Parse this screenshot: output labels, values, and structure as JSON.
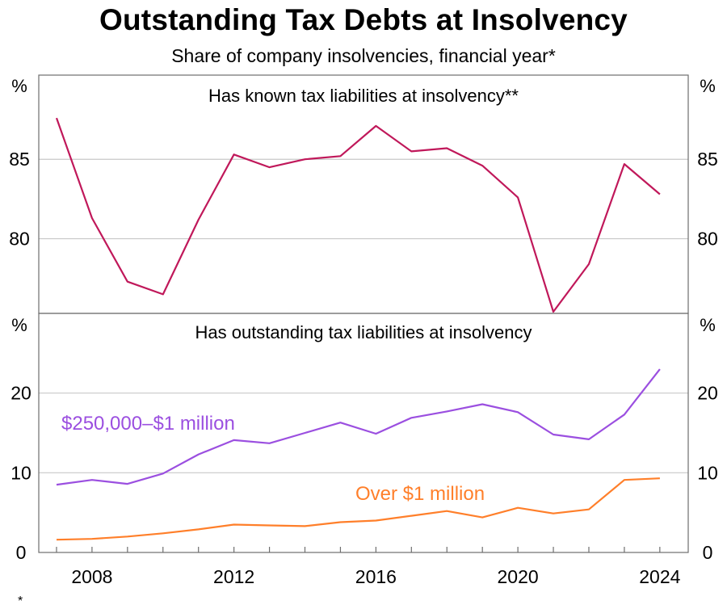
{
  "title": "Outstanding Tax Debts at Insolvency",
  "subtitle": "Share of company insolvencies, financial year*",
  "footnote_mark": "*",
  "colors": {
    "known": "#C0185A",
    "mid": "#9B4FE0",
    "over": "#FF7F2A",
    "grid": "#C8C8C8",
    "frame": "#6E6E6E"
  },
  "chart_data": [
    {
      "type": "line",
      "panel": "top",
      "title": "Has known tax liabilities at insolvency**",
      "unit_label": "%",
      "ylim": [
        75.3,
        90.3
      ],
      "yticks": [
        80,
        85
      ],
      "xlim": [
        2006.5,
        2024.8
      ],
      "grid": true,
      "series": [
        {
          "x": [
            2007,
            2008,
            2009,
            2010,
            2011,
            2012,
            2013,
            2014,
            2015,
            2016,
            2017,
            2018,
            2019,
            2020,
            2021,
            2022,
            2023,
            2024
          ],
          "values": [
            87.6,
            81.3,
            77.3,
            76.5,
            81.2,
            85.3,
            84.5,
            85.0,
            85.2,
            87.1,
            85.5,
            85.7,
            84.6,
            82.6,
            75.4,
            78.4,
            84.7,
            82.8
          ]
        }
      ]
    },
    {
      "type": "line",
      "panel": "bottom",
      "title": "Has outstanding tax liabilities at insolvency",
      "unit_label": "%",
      "ylim": [
        0,
        30
      ],
      "yticks": [
        0,
        10,
        20
      ],
      "xlim": [
        2006.5,
        2024.8
      ],
      "xticks": [
        "2008",
        "2012",
        "2016",
        "2020",
        "2024"
      ],
      "grid": true,
      "series": [
        {
          "name": "$250,000–$1 million",
          "x": [
            2007,
            2008,
            2009,
            2010,
            2011,
            2012,
            2013,
            2014,
            2015,
            2016,
            2017,
            2018,
            2019,
            2020,
            2021,
            2022,
            2023,
            2024
          ],
          "values": [
            8.5,
            9.1,
            8.6,
            9.9,
            12.3,
            14.1,
            13.7,
            15.0,
            16.3,
            14.9,
            16.9,
            17.7,
            18.6,
            17.6,
            14.8,
            14.2,
            17.3,
            23.0
          ]
        },
        {
          "name": "Over $1 million",
          "x": [
            2007,
            2008,
            2009,
            2010,
            2011,
            2012,
            2013,
            2014,
            2015,
            2016,
            2017,
            2018,
            2019,
            2020,
            2021,
            2022,
            2023,
            2024
          ],
          "values": [
            1.6,
            1.7,
            2.0,
            2.4,
            2.9,
            3.5,
            3.4,
            3.3,
            3.8,
            4.0,
            4.6,
            5.2,
            4.4,
            5.6,
            4.9,
            5.4,
            9.1,
            9.3
          ]
        }
      ]
    }
  ]
}
